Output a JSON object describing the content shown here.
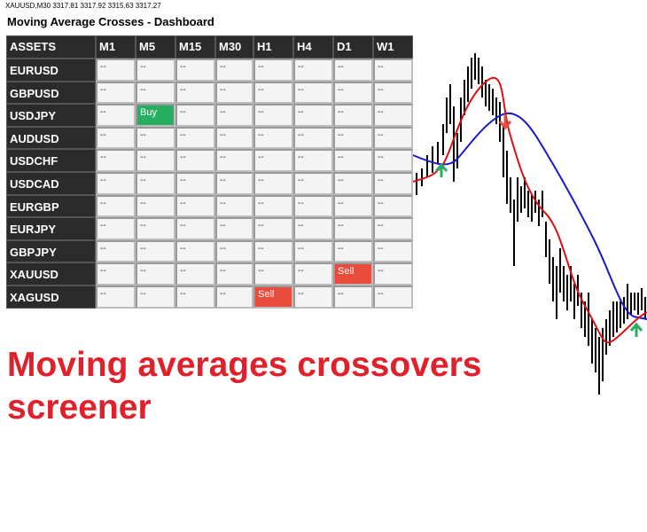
{
  "header": {
    "symbol_info": "XAUUSD,M30  3317.81  3317.92  3315.63  3317.27",
    "title": "Moving Average Crosses - Dashboard"
  },
  "table": {
    "columns": [
      "ASSETS",
      "M1",
      "M5",
      "M15",
      "M30",
      "H1",
      "H4",
      "D1",
      "W1"
    ],
    "signal_colors": {
      "Buy": "#27ae60",
      "Sell": "#e74c3c"
    },
    "rows": [
      {
        "asset": "EURUSD",
        "cells": [
          "--",
          "--",
          "--",
          "--",
          "--",
          "--",
          "--",
          "--"
        ]
      },
      {
        "asset": "GBPUSD",
        "cells": [
          "--",
          "--",
          "--",
          "--",
          "--",
          "--",
          "--",
          "--"
        ]
      },
      {
        "asset": "USDJPY",
        "cells": [
          "--",
          "Buy",
          "--",
          "--",
          "--",
          "--",
          "--",
          "--"
        ]
      },
      {
        "asset": "AUDUSD",
        "cells": [
          "--",
          "--",
          "--",
          "--",
          "--",
          "--",
          "--",
          "--"
        ]
      },
      {
        "asset": "USDCHF",
        "cells": [
          "--",
          "--",
          "--",
          "--",
          "--",
          "--",
          "--",
          "--"
        ]
      },
      {
        "asset": "USDCAD",
        "cells": [
          "--",
          "--",
          "--",
          "--",
          "--",
          "--",
          "--",
          "--"
        ]
      },
      {
        "asset": "EURGBP",
        "cells": [
          "--",
          "--",
          "--",
          "--",
          "--",
          "--",
          "--",
          "--"
        ]
      },
      {
        "asset": "EURJPY",
        "cells": [
          "--",
          "--",
          "--",
          "--",
          "--",
          "--",
          "--",
          "--"
        ]
      },
      {
        "asset": "GBPJPY",
        "cells": [
          "--",
          "--",
          "--",
          "--",
          "--",
          "--",
          "--",
          "--"
        ]
      },
      {
        "asset": "XAUUSD",
        "cells": [
          "--",
          "--",
          "--",
          "--",
          "--",
          "--",
          "Sell",
          "--"
        ]
      },
      {
        "asset": "XAGUSD",
        "cells": [
          "--",
          "--",
          "--",
          "--",
          "Sell",
          "--",
          "--",
          "--"
        ]
      }
    ]
  },
  "caption": "Moving averages crossovers screener"
}
